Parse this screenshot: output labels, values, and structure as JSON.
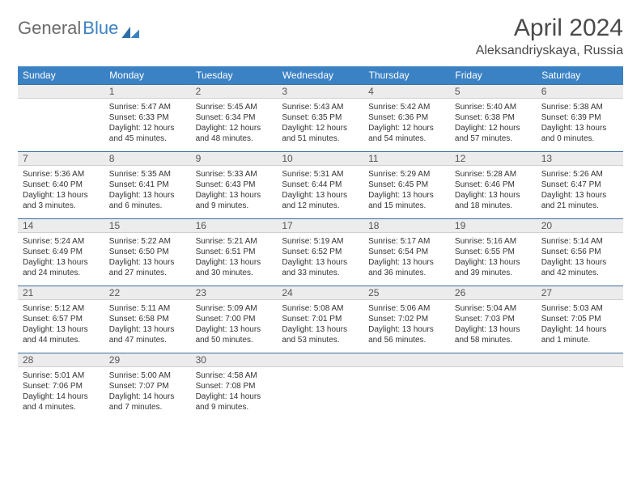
{
  "brand": {
    "word1": "General",
    "word2": "Blue"
  },
  "title": "April 2024",
  "location": "Aleksandriyskaya, Russia",
  "colors": {
    "header_bg": "#3b82c4",
    "header_text": "#ffffff",
    "daynum_bg": "#ececec",
    "daynum_border_top": "#3b6fa0",
    "text": "#333333",
    "brand_gray": "#6b6b6b",
    "brand_blue": "#3b82c4"
  },
  "day_headers": [
    "Sunday",
    "Monday",
    "Tuesday",
    "Wednesday",
    "Thursday",
    "Friday",
    "Saturday"
  ],
  "weeks": [
    [
      {
        "n": "",
        "lines": []
      },
      {
        "n": "1",
        "lines": [
          "Sunrise: 5:47 AM",
          "Sunset: 6:33 PM",
          "Daylight: 12 hours",
          "and 45 minutes."
        ]
      },
      {
        "n": "2",
        "lines": [
          "Sunrise: 5:45 AM",
          "Sunset: 6:34 PM",
          "Daylight: 12 hours",
          "and 48 minutes."
        ]
      },
      {
        "n": "3",
        "lines": [
          "Sunrise: 5:43 AM",
          "Sunset: 6:35 PM",
          "Daylight: 12 hours",
          "and 51 minutes."
        ]
      },
      {
        "n": "4",
        "lines": [
          "Sunrise: 5:42 AM",
          "Sunset: 6:36 PM",
          "Daylight: 12 hours",
          "and 54 minutes."
        ]
      },
      {
        "n": "5",
        "lines": [
          "Sunrise: 5:40 AM",
          "Sunset: 6:38 PM",
          "Daylight: 12 hours",
          "and 57 minutes."
        ]
      },
      {
        "n": "6",
        "lines": [
          "Sunrise: 5:38 AM",
          "Sunset: 6:39 PM",
          "Daylight: 13 hours",
          "and 0 minutes."
        ]
      }
    ],
    [
      {
        "n": "7",
        "lines": [
          "Sunrise: 5:36 AM",
          "Sunset: 6:40 PM",
          "Daylight: 13 hours",
          "and 3 minutes."
        ]
      },
      {
        "n": "8",
        "lines": [
          "Sunrise: 5:35 AM",
          "Sunset: 6:41 PM",
          "Daylight: 13 hours",
          "and 6 minutes."
        ]
      },
      {
        "n": "9",
        "lines": [
          "Sunrise: 5:33 AM",
          "Sunset: 6:43 PM",
          "Daylight: 13 hours",
          "and 9 minutes."
        ]
      },
      {
        "n": "10",
        "lines": [
          "Sunrise: 5:31 AM",
          "Sunset: 6:44 PM",
          "Daylight: 13 hours",
          "and 12 minutes."
        ]
      },
      {
        "n": "11",
        "lines": [
          "Sunrise: 5:29 AM",
          "Sunset: 6:45 PM",
          "Daylight: 13 hours",
          "and 15 minutes."
        ]
      },
      {
        "n": "12",
        "lines": [
          "Sunrise: 5:28 AM",
          "Sunset: 6:46 PM",
          "Daylight: 13 hours",
          "and 18 minutes."
        ]
      },
      {
        "n": "13",
        "lines": [
          "Sunrise: 5:26 AM",
          "Sunset: 6:47 PM",
          "Daylight: 13 hours",
          "and 21 minutes."
        ]
      }
    ],
    [
      {
        "n": "14",
        "lines": [
          "Sunrise: 5:24 AM",
          "Sunset: 6:49 PM",
          "Daylight: 13 hours",
          "and 24 minutes."
        ]
      },
      {
        "n": "15",
        "lines": [
          "Sunrise: 5:22 AM",
          "Sunset: 6:50 PM",
          "Daylight: 13 hours",
          "and 27 minutes."
        ]
      },
      {
        "n": "16",
        "lines": [
          "Sunrise: 5:21 AM",
          "Sunset: 6:51 PM",
          "Daylight: 13 hours",
          "and 30 minutes."
        ]
      },
      {
        "n": "17",
        "lines": [
          "Sunrise: 5:19 AM",
          "Sunset: 6:52 PM",
          "Daylight: 13 hours",
          "and 33 minutes."
        ]
      },
      {
        "n": "18",
        "lines": [
          "Sunrise: 5:17 AM",
          "Sunset: 6:54 PM",
          "Daylight: 13 hours",
          "and 36 minutes."
        ]
      },
      {
        "n": "19",
        "lines": [
          "Sunrise: 5:16 AM",
          "Sunset: 6:55 PM",
          "Daylight: 13 hours",
          "and 39 minutes."
        ]
      },
      {
        "n": "20",
        "lines": [
          "Sunrise: 5:14 AM",
          "Sunset: 6:56 PM",
          "Daylight: 13 hours",
          "and 42 minutes."
        ]
      }
    ],
    [
      {
        "n": "21",
        "lines": [
          "Sunrise: 5:12 AM",
          "Sunset: 6:57 PM",
          "Daylight: 13 hours",
          "and 44 minutes."
        ]
      },
      {
        "n": "22",
        "lines": [
          "Sunrise: 5:11 AM",
          "Sunset: 6:58 PM",
          "Daylight: 13 hours",
          "and 47 minutes."
        ]
      },
      {
        "n": "23",
        "lines": [
          "Sunrise: 5:09 AM",
          "Sunset: 7:00 PM",
          "Daylight: 13 hours",
          "and 50 minutes."
        ]
      },
      {
        "n": "24",
        "lines": [
          "Sunrise: 5:08 AM",
          "Sunset: 7:01 PM",
          "Daylight: 13 hours",
          "and 53 minutes."
        ]
      },
      {
        "n": "25",
        "lines": [
          "Sunrise: 5:06 AM",
          "Sunset: 7:02 PM",
          "Daylight: 13 hours",
          "and 56 minutes."
        ]
      },
      {
        "n": "26",
        "lines": [
          "Sunrise: 5:04 AM",
          "Sunset: 7:03 PM",
          "Daylight: 13 hours",
          "and 58 minutes."
        ]
      },
      {
        "n": "27",
        "lines": [
          "Sunrise: 5:03 AM",
          "Sunset: 7:05 PM",
          "Daylight: 14 hours",
          "and 1 minute."
        ]
      }
    ],
    [
      {
        "n": "28",
        "lines": [
          "Sunrise: 5:01 AM",
          "Sunset: 7:06 PM",
          "Daylight: 14 hours",
          "and 4 minutes."
        ]
      },
      {
        "n": "29",
        "lines": [
          "Sunrise: 5:00 AM",
          "Sunset: 7:07 PM",
          "Daylight: 14 hours",
          "and 7 minutes."
        ]
      },
      {
        "n": "30",
        "lines": [
          "Sunrise: 4:58 AM",
          "Sunset: 7:08 PM",
          "Daylight: 14 hours",
          "and 9 minutes."
        ]
      },
      {
        "n": "",
        "lines": []
      },
      {
        "n": "",
        "lines": []
      },
      {
        "n": "",
        "lines": []
      },
      {
        "n": "",
        "lines": []
      }
    ]
  ]
}
